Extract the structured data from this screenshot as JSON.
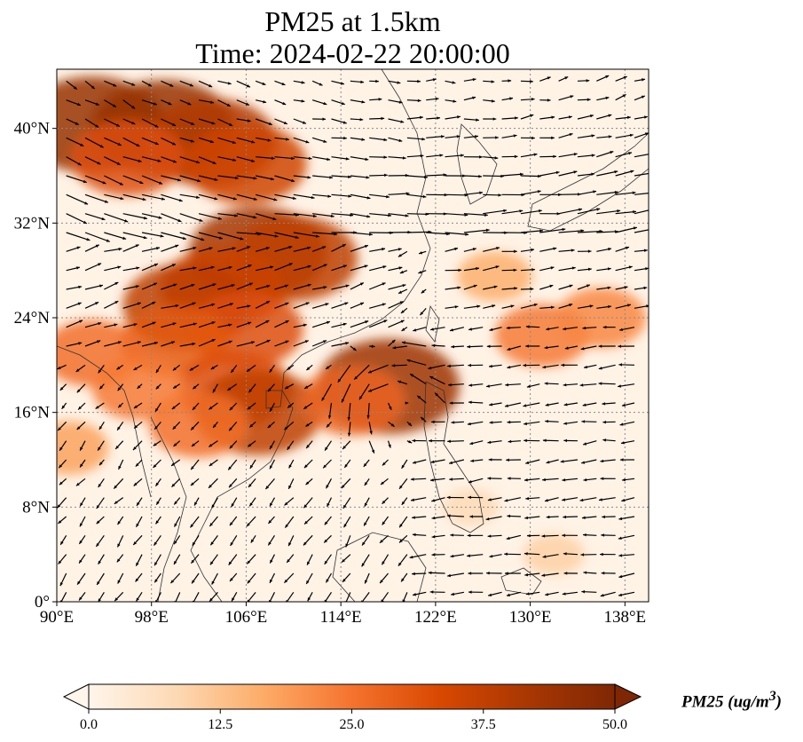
{
  "title": {
    "line1": "PM25 at 1.5km",
    "line2": "Time: 2024-02-22 20:00:00"
  },
  "map": {
    "type": "pm25-map-with-wind-vectors",
    "extent": {
      "lon": [
        90,
        140
      ],
      "lat": [
        0,
        45
      ]
    },
    "lon_ticks": [
      {
        "value": 90,
        "label": "90°E"
      },
      {
        "value": 98,
        "label": "98°E"
      },
      {
        "value": 106,
        "label": "106°E"
      },
      {
        "value": 114,
        "label": "114°E"
      },
      {
        "value": 122,
        "label": "122°E"
      },
      {
        "value": 130,
        "label": "130°E"
      },
      {
        "value": 138,
        "label": "138°E"
      }
    ],
    "lat_ticks": [
      {
        "value": 0,
        "label": "0°"
      },
      {
        "value": 8,
        "label": "8°N"
      },
      {
        "value": 16,
        "label": "16°N"
      },
      {
        "value": 24,
        "label": "24°N"
      },
      {
        "value": 32,
        "label": "32°N"
      },
      {
        "value": 40,
        "label": "40°N"
      }
    ],
    "gridlines": true,
    "pm25_hotspots": [
      {
        "lon": 93,
        "lat": 40.3,
        "value": 45
      },
      {
        "lon": 99,
        "lat": 40.0,
        "value": 45
      },
      {
        "lon": 103,
        "lat": 38.8,
        "value": 40
      },
      {
        "lon": 106,
        "lat": 37.0,
        "value": 35
      },
      {
        "lon": 96,
        "lat": 37.5,
        "value": 32
      },
      {
        "lon": 107,
        "lat": 29.5,
        "value": 42
      },
      {
        "lon": 110,
        "lat": 29.0,
        "value": 38
      },
      {
        "lon": 104,
        "lat": 26.5,
        "value": 36
      },
      {
        "lon": 101,
        "lat": 25.0,
        "value": 38
      },
      {
        "lon": 106,
        "lat": 23.0,
        "value": 32
      },
      {
        "lon": 100,
        "lat": 22.0,
        "value": 30
      },
      {
        "lon": 93,
        "lat": 21.0,
        "value": 26
      },
      {
        "lon": 105,
        "lat": 18.0,
        "value": 32
      },
      {
        "lon": 107,
        "lat": 16.0,
        "value": 38
      },
      {
        "lon": 102,
        "lat": 15.0,
        "value": 26
      },
      {
        "lon": 97,
        "lat": 18.0,
        "value": 24
      },
      {
        "lon": 118,
        "lat": 18.2,
        "value": 44
      },
      {
        "lon": 115,
        "lat": 17.0,
        "value": 28
      },
      {
        "lon": 131,
        "lat": 22.5,
        "value": 24
      },
      {
        "lon": 136,
        "lat": 24.0,
        "value": 22
      },
      {
        "lon": 127,
        "lat": 27.5,
        "value": 16
      },
      {
        "lon": 91,
        "lat": 13.0,
        "value": 18
      },
      {
        "lon": 125,
        "lat": 8.0,
        "value": 8
      },
      {
        "lon": 132,
        "lat": 4.0,
        "value": 10
      }
    ]
  },
  "colorbar": {
    "title_prefix": "PM25 (ug/m",
    "title_exp": "3",
    "title_suffix": ")",
    "min": 0,
    "max": 50,
    "ticks": [
      "0.0",
      "12.5",
      "25.0",
      "37.5",
      "50.0"
    ],
    "colors": [
      "#fff5eb",
      "#fdd9b4",
      "#fdab67",
      "#f5732e",
      "#d94801",
      "#a93703",
      "#7f2704"
    ]
  }
}
